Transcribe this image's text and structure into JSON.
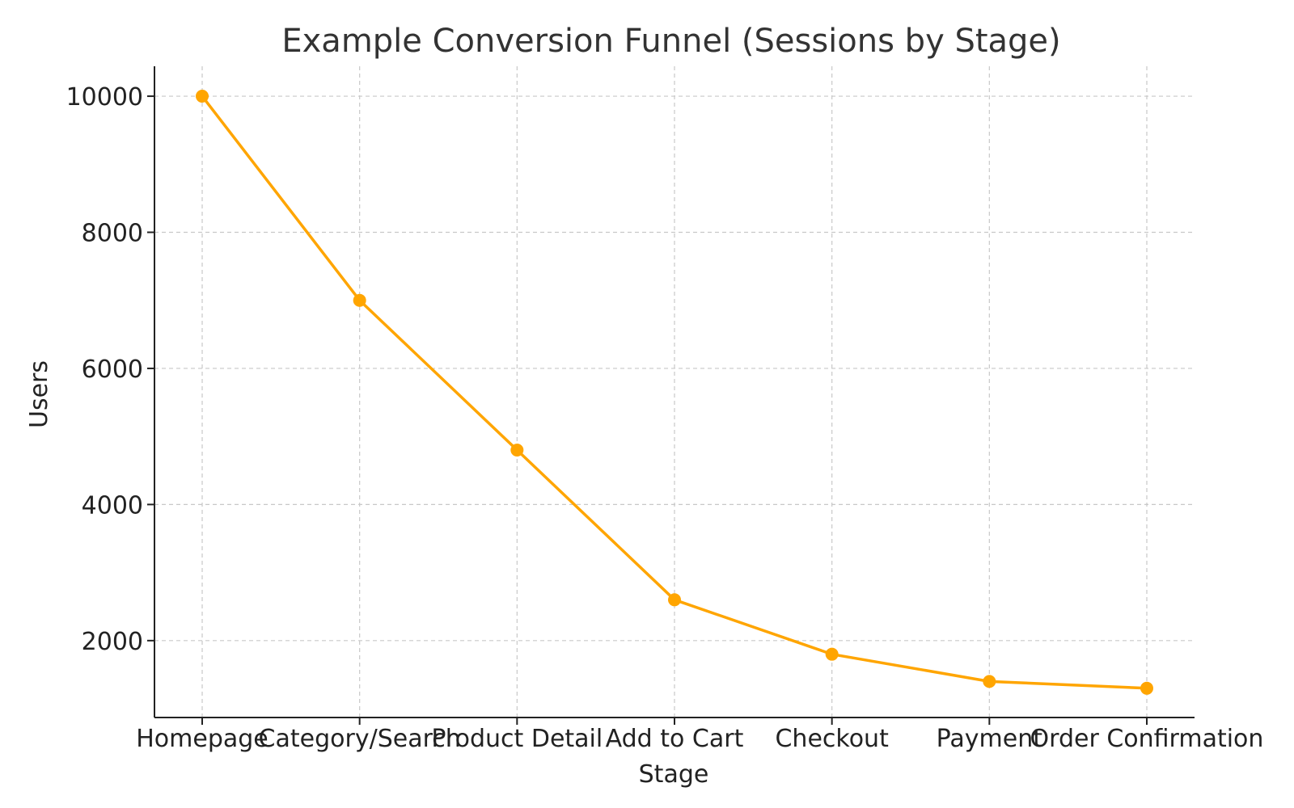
{
  "chart_data": {
    "type": "line",
    "title": "Example Conversion Funnel (Sessions by Stage)",
    "xlabel": "Stage",
    "ylabel": "Users",
    "categories": [
      "Homepage",
      "Category/Search",
      "Product Detail",
      "Add to Cart",
      "Checkout",
      "Payment",
      "Order Confirmation"
    ],
    "series": [
      {
        "values": [
          10000,
          7000,
          4800,
          2600,
          1800,
          1400,
          1300
        ],
        "color": "#FFA500"
      }
    ],
    "yticks": [
      2000,
      4000,
      6000,
      8000,
      10000
    ],
    "ylim": [
      870,
      10440
    ],
    "grid": true,
    "legend": "none"
  }
}
